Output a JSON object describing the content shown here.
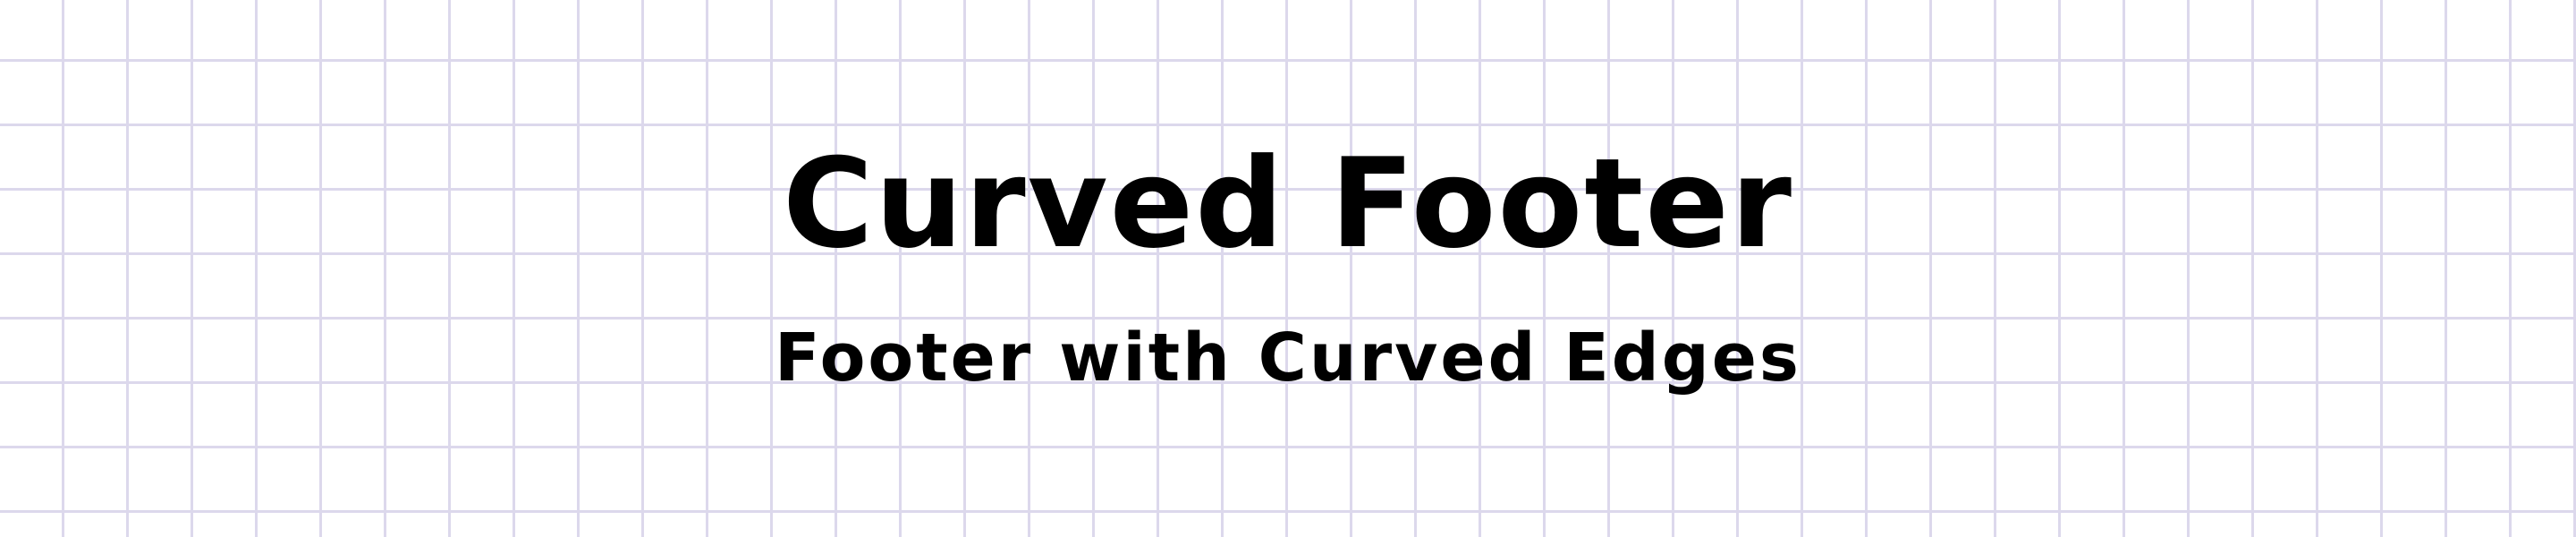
{
  "hero": {
    "title": "Curved Footer",
    "subtitle": "Footer with Curved Edges"
  },
  "colors": {
    "background": "#ffffff",
    "grid_line": "#dcd8ec",
    "text": "#000000"
  }
}
